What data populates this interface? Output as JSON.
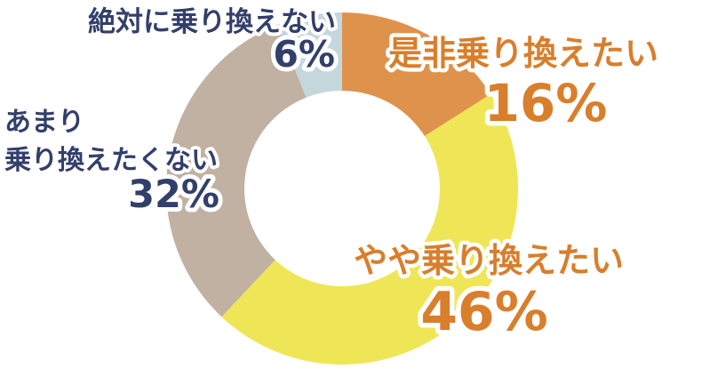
{
  "chart_data": {
    "type": "pie",
    "subtype": "donut",
    "title": "",
    "unit": "%",
    "direction": "clockwise",
    "start_angle_deg": 0,
    "center": [
      385,
      212
    ],
    "outer_radius": 198,
    "inner_radius": 110,
    "background": "#FFFFFF",
    "legend": "none",
    "categories": [
      "是非乗り換えたい",
      "やや乗り換えたい",
      "あまり乗り換えたくない",
      "絶対に乗り換えない"
    ],
    "values": [
      16,
      46,
      32,
      6
    ],
    "segments": [
      {
        "label": "是非乗り換えたい",
        "label_lines": [
          "是非乗り換えたい"
        ],
        "value": 16,
        "value_text": "16%",
        "color": "#DF924B",
        "label_color": "#D97E2B"
      },
      {
        "label": "やや乗り換えたい",
        "label_lines": [
          "やや乗り換えたい"
        ],
        "value": 46,
        "value_text": "46%",
        "color": "#EFE657",
        "label_color": "#D97E2B"
      },
      {
        "label": "あまり乗り換えたくない",
        "label_lines": [
          "あまり",
          "乗り換えたくない"
        ],
        "value": 32,
        "value_text": "32%",
        "color": "#C0B1A2",
        "label_color": "#333F6B"
      },
      {
        "label": "絶対に乗り換えない",
        "label_lines": [
          "絶対に乗り換えない"
        ],
        "value": 6,
        "value_text": "6%",
        "color": "#C3D7DC",
        "label_color": "#333F6B"
      }
    ]
  }
}
